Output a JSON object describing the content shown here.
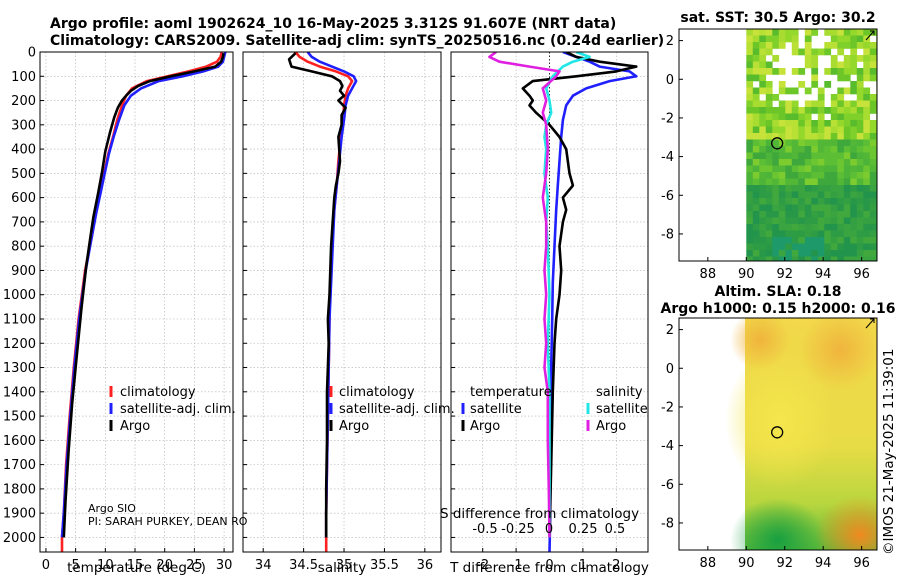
{
  "header": {
    "line1": "Argo profile: aoml 1902624_10 16-May-2025 3.312S 91.607E (NRT data)",
    "line2": "Climatology: CARS2009. Satellite-adj clim: synTS_20250516.nc (0.24d earlier)"
  },
  "credits": {
    "org": "Argo SIO",
    "pi": "PI: SARAH PURKEY, DEAN RO"
  },
  "timestamp": "©IMOS 21-May-2025 11:39:01",
  "colors": {
    "climatology": "#ff2020",
    "satellite": "#2020ff",
    "argo": "#000000",
    "sat_salinity": "#22e6e6",
    "argo_salinity": "#e020e0",
    "grid": "#b0b0b0"
  },
  "chart_data": [
    {
      "type": "line",
      "id": "temperature",
      "xlabel": "temperature (deg C)",
      "ylabel": "depth",
      "xlim": [
        -1,
        31.5
      ],
      "ylim": [
        0,
        2060
      ],
      "xticks": [
        0,
        5,
        10,
        15,
        20,
        25,
        30
      ],
      "yticks": [
        0,
        100,
        200,
        300,
        400,
        500,
        600,
        700,
        800,
        900,
        1000,
        1100,
        1200,
        1300,
        1400,
        1500,
        1600,
        1700,
        1800,
        1900,
        2000
      ],
      "legend": [
        "climatology",
        "satellite-adj. clim.",
        "Argo"
      ],
      "series": [
        {
          "name": "climatology",
          "x": [
            29.6,
            29.4,
            28.8,
            27.0,
            24.0,
            20.5,
            17.0,
            14.5,
            13.5,
            12.8,
            12.0,
            11.3,
            10.5,
            9.8,
            9.1,
            8.4,
            7.8,
            6.6,
            5.5,
            4.7,
            4.0,
            3.4,
            3.0,
            2.7,
            2.7
          ],
          "y": [
            0,
            20,
            40,
            60,
            80,
            100,
            120,
            150,
            180,
            220,
            280,
            350,
            420,
            500,
            580,
            660,
            750,
            900,
            1100,
            1300,
            1500,
            1700,
            1900,
            2000,
            2060
          ]
        },
        {
          "name": "satellite-adj. clim.",
          "x": [
            30.2,
            30.0,
            29.8,
            29.0,
            26.5,
            23.0,
            19.0,
            16.0,
            14.3,
            13.2,
            12.3,
            11.4,
            10.6,
            9.9,
            9.2,
            8.5,
            7.8,
            6.7,
            5.6,
            4.8,
            4.1,
            3.5,
            3.0,
            2.7
          ],
          "y": [
            0,
            20,
            40,
            60,
            80,
            100,
            120,
            150,
            180,
            220,
            280,
            350,
            420,
            500,
            580,
            660,
            750,
            900,
            1100,
            1300,
            1500,
            1700,
            1900,
            2000
          ]
        },
        {
          "name": "Argo",
          "x": [
            29.9,
            29.8,
            29.5,
            28.5,
            25.0,
            21.0,
            17.5,
            15.5,
            14.3,
            13.5,
            12.8,
            12.1,
            11.5,
            10.8,
            10.0,
            9.4,
            8.8,
            8.0,
            7.5,
            6.8,
            6.0,
            5.2,
            4.4,
            3.8,
            3.3,
            3.0
          ],
          "y": [
            5,
            20,
            40,
            60,
            80,
            100,
            120,
            140,
            160,
            180,
            200,
            230,
            270,
            330,
            410,
            500,
            580,
            680,
            760,
            880,
            1050,
            1250,
            1450,
            1650,
            1850,
            2000
          ]
        }
      ]
    },
    {
      "type": "line",
      "id": "salinity",
      "xlabel": "salinity",
      "xlim": [
        33.75,
        36.2
      ],
      "ylim": [
        0,
        2060
      ],
      "xticks": [
        34,
        34.5,
        35,
        35.5,
        36
      ],
      "legend": [
        "climatology",
        "satellite-adj. clim.",
        "Argo"
      ],
      "series": [
        {
          "name": "climatology",
          "x": [
            34.4,
            34.45,
            34.55,
            34.7,
            34.9,
            35.05,
            35.1,
            35.05,
            35.02,
            35.0,
            34.99,
            34.96,
            34.93,
            34.91,
            34.88,
            34.85,
            34.83,
            34.82,
            34.81,
            34.8,
            34.79,
            34.78,
            34.78,
            34.78
          ],
          "y": [
            0,
            20,
            40,
            60,
            80,
            100,
            120,
            150,
            180,
            220,
            280,
            350,
            450,
            550,
            650,
            800,
            950,
            1100,
            1300,
            1500,
            1700,
            1900,
            2000,
            2060
          ]
        },
        {
          "name": "satellite-adj. clim.",
          "x": [
            34.55,
            34.6,
            34.7,
            34.85,
            35.0,
            35.12,
            35.15,
            35.1,
            35.05,
            35.02,
            35.0,
            34.97,
            34.94,
            34.91,
            34.88,
            34.86,
            34.84,
            34.82,
            34.81,
            34.8,
            34.79,
            34.78,
            34.78
          ],
          "y": [
            0,
            20,
            40,
            60,
            80,
            100,
            120,
            150,
            180,
            220,
            280,
            350,
            450,
            550,
            650,
            800,
            950,
            1100,
            1300,
            1500,
            1700,
            1900,
            2000
          ]
        },
        {
          "name": "Argo",
          "x": [
            34.4,
            34.32,
            34.35,
            34.6,
            34.85,
            34.95,
            34.98,
            34.95,
            35.0,
            34.93,
            35.02,
            34.97,
            34.97,
            34.93,
            34.94,
            34.95,
            34.93,
            34.9,
            34.88,
            34.86,
            34.84,
            34.83,
            34.82,
            34.8,
            34.81,
            34.8,
            34.79,
            34.79,
            34.78,
            34.78
          ],
          "y": [
            5,
            30,
            60,
            80,
            100,
            120,
            140,
            160,
            180,
            200,
            230,
            260,
            300,
            350,
            400,
            450,
            500,
            550,
            600,
            700,
            800,
            900,
            1000,
            1100,
            1200,
            1300,
            1400,
            1600,
            1800,
            2000
          ]
        }
      ]
    },
    {
      "type": "line",
      "id": "difference",
      "xlabel": "T difference from climatology",
      "inner_xlabel": "S difference from climatology",
      "xlim": [
        -2.95,
        2.95
      ],
      "ylim": [
        0,
        2060
      ],
      "xticks": [
        -2,
        -1,
        0,
        1,
        2
      ],
      "inner_xticks": [
        "-0.5",
        "-0.25",
        "0",
        "0.25",
        "0.5"
      ],
      "legend_temperature_title": "temperature",
      "legend_salinity_title": "salinity",
      "legend": [
        "satellite",
        "Argo",
        "satellite",
        "Argo"
      ],
      "series": [
        {
          "name": "temperature satellite",
          "color": "#2020ff",
          "x": [
            0.4,
            0.8,
            1.2,
            1.5,
            2.4,
            2.6,
            1.8,
            1.1,
            0.7,
            0.5,
            0.4,
            0.35,
            0.3,
            0.25,
            0.2,
            0.15,
            0.1,
            0.08,
            0.05,
            0.04,
            0.03,
            0.02,
            0.01,
            0.0
          ],
          "y": [
            0,
            20,
            40,
            60,
            80,
            100,
            120,
            150,
            180,
            220,
            280,
            350,
            450,
            550,
            650,
            800,
            950,
            1100,
            1300,
            1500,
            1700,
            1900,
            2000,
            2060
          ]
        },
        {
          "name": "temperature Argo",
          "color": "#000000",
          "x": [
            0.5,
            0.8,
            1.5,
            2.6,
            2.0,
            0.8,
            -0.5,
            -0.8,
            -0.6,
            -0.5,
            -0.6,
            -0.4,
            0.0,
            0.3,
            0.5,
            0.6,
            0.7,
            0.4,
            0.5,
            0.4,
            0.3,
            0.35,
            0.3,
            0.2,
            0.15,
            0.1,
            0.05,
            0.0
          ],
          "y": [
            0,
            20,
            40,
            60,
            80,
            100,
            120,
            150,
            180,
            200,
            220,
            250,
            300,
            350,
            400,
            500,
            550,
            600,
            650,
            700,
            800,
            900,
            1000,
            1100,
            1200,
            1400,
            1700,
            2000
          ]
        },
        {
          "name": "salinity satellite",
          "color": "#22e6e6",
          "x": [
            0.8,
            1.2,
            0.7,
            0.4,
            0.1,
            -0.1,
            0.0,
            0.05,
            -0.1,
            -0.15,
            -0.1,
            -0.15,
            -0.05,
            -0.1,
            -0.05,
            0.0,
            -0.05,
            0.0,
            0.0,
            0.0
          ],
          "y": [
            0,
            20,
            40,
            60,
            100,
            150,
            200,
            250,
            300,
            350,
            400,
            500,
            600,
            700,
            800,
            1000,
            1200,
            1400,
            1700,
            2000
          ]
        },
        {
          "name": "salinity Argo",
          "color": "#e020e0",
          "x": [
            -1.6,
            -1.8,
            -1.5,
            -0.6,
            0.3,
            0.2,
            -0.2,
            -0.1,
            -0.2,
            -0.1,
            -0.05,
            -0.1,
            -0.2,
            -0.1,
            -0.1,
            -0.15,
            -0.1,
            -0.15,
            -0.1,
            -0.15,
            -0.05,
            -0.05,
            -0.02,
            0.0
          ],
          "y": [
            0,
            20,
            40,
            60,
            80,
            100,
            150,
            200,
            250,
            300,
            400,
            500,
            600,
            700,
            800,
            900,
            1000,
            1100,
            1200,
            1300,
            1400,
            1600,
            1800,
            2000
          ]
        }
      ]
    },
    {
      "type": "heatmap",
      "id": "sst_map",
      "title": "sat. SST: 30.5 Argo: 30.2",
      "xlim": [
        86.5,
        96.8
      ],
      "ylim": [
        -9.4,
        2.6
      ],
      "xticks": [
        88,
        90,
        92,
        94,
        96
      ],
      "yticks": [
        -8,
        -6,
        -4,
        -2,
        0,
        2
      ],
      "argo_position": [
        91.607,
        -3.312
      ],
      "data_xmin": 90
    },
    {
      "type": "heatmap",
      "id": "sla_map",
      "title_line1": "Altim. SLA: 0.18",
      "title_line2": "Argo h1000: 0.15 h2000: 0.16",
      "xlim": [
        86.5,
        96.8
      ],
      "ylim": [
        -9.4,
        2.6
      ],
      "xticks": [
        88,
        90,
        92,
        94,
        96
      ],
      "yticks": [
        -8,
        -6,
        -4,
        -2,
        0,
        2
      ],
      "argo_position": [
        91.607,
        -3.312
      ],
      "data_xmin": 90
    }
  ]
}
